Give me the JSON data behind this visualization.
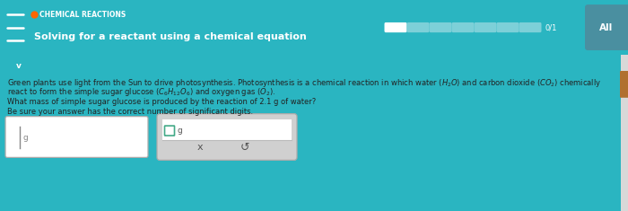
{
  "header_bg": "#2ab5c1",
  "header_text_color": "#ffffff",
  "body_bg": "#e8e8e8",
  "title_small": "CHEMICAL REACTIONS",
  "title_main": "Solving for a reactant using a chemical equation",
  "progress_color": "#7dd0d8",
  "progress_filled": "#ffffff",
  "body_text_color": "#222222",
  "paragraph2": "What mass of simple sugar glucose is produced by the reaction of 2.1 g of water?",
  "paragraph3": "Be sure your answer has the correct number of significant digits.",
  "box1_label": "g",
  "button_x": "x",
  "button_retry": "↺",
  "chevron_color": "#2ab5c1",
  "icon_color": "#ff6600",
  "scrollbar_thumb": "#b07030"
}
